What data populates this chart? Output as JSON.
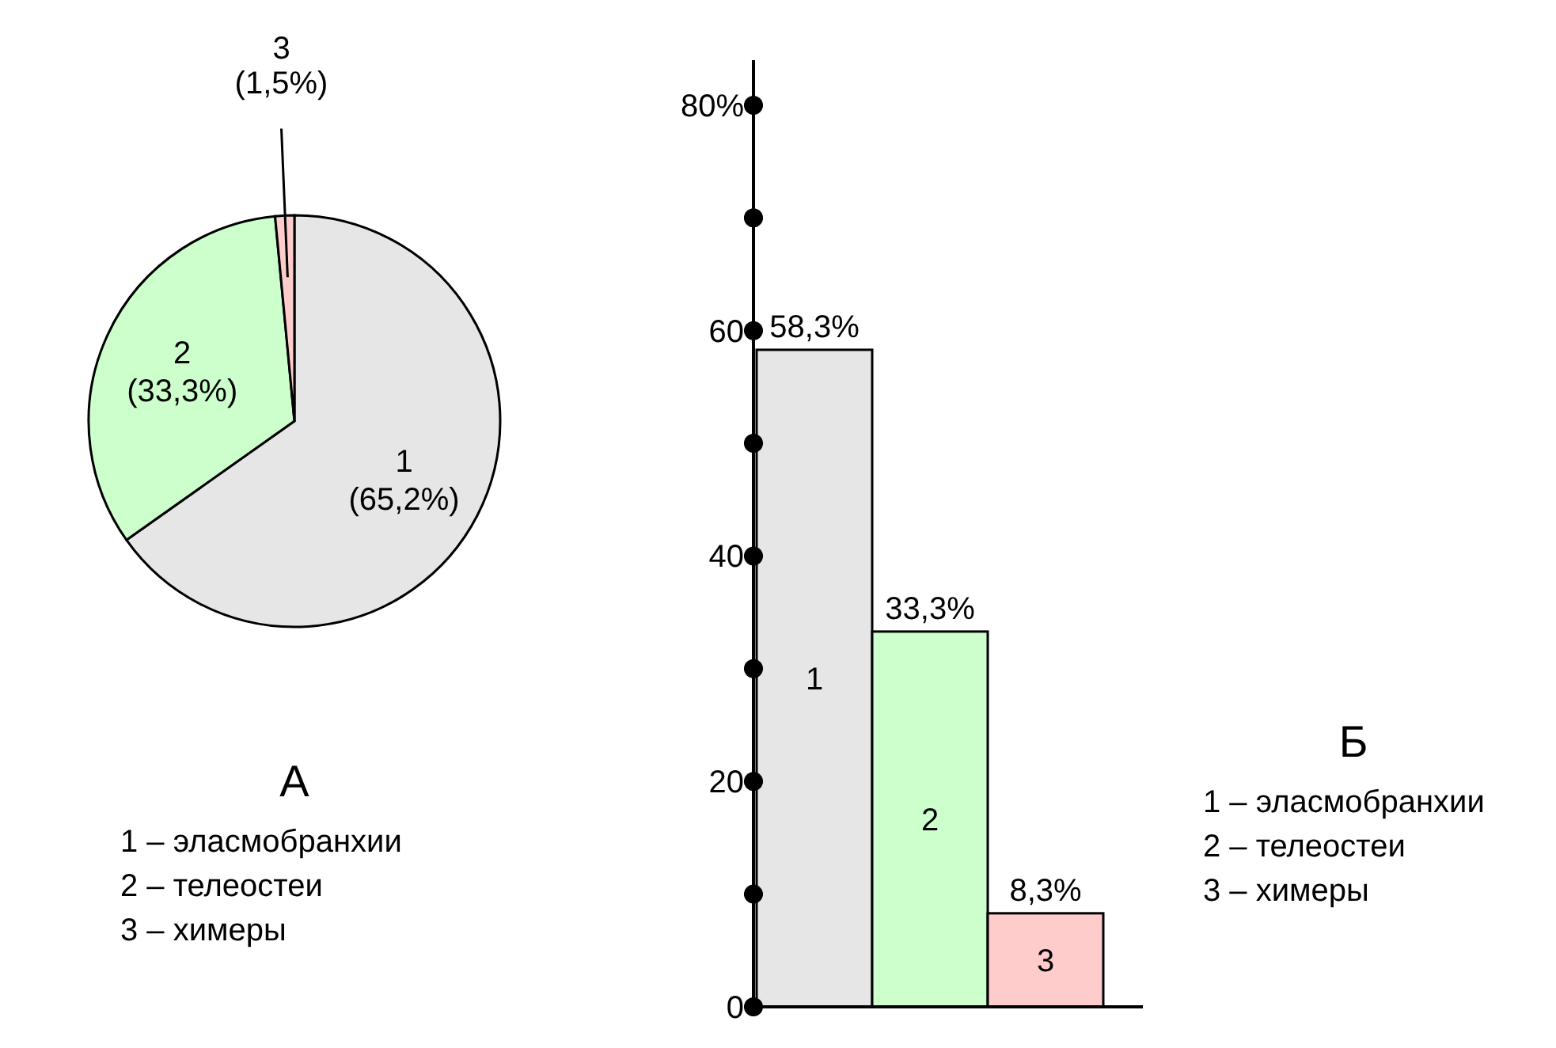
{
  "chart_data": [
    {
      "type": "pie",
      "categories": [
        "1",
        "2",
        "3"
      ],
      "values": [
        65.2,
        33.3,
        1.5
      ],
      "colors": [
        "#e6e6e6",
        "#ccffcc",
        "#ffcccc"
      ],
      "value_labels": [
        "(65,2%)",
        "(33,3%)",
        "(1,5%)"
      ],
      "annotations": [
        "А",
        "1 – эласмобранхии",
        "2 – телеостеи",
        "3 – химеры"
      ]
    },
    {
      "type": "bar",
      "categories": [
        "1",
        "2",
        "3"
      ],
      "values": [
        58.3,
        33.3,
        8.3
      ],
      "colors": [
        "#e6e6e6",
        "#ccffcc",
        "#ffcccc"
      ],
      "value_labels": [
        "58,3%",
        "33,3%",
        "8,3%"
      ],
      "ylim": [
        0,
        84
      ],
      "yticks": [
        0,
        {
          "value": 10,
          "label": null
        },
        20,
        {
          "value": 30,
          "label": null
        },
        40,
        {
          "value": 50,
          "label": null
        },
        60,
        {
          "value": 70,
          "label": null
        },
        {
          "value": 80,
          "label": "80%"
        }
      ],
      "annotations": [
        "Б",
        "1 – эласмобранхии",
        "2 – телеостеи",
        "3 – химеры"
      ]
    }
  ]
}
